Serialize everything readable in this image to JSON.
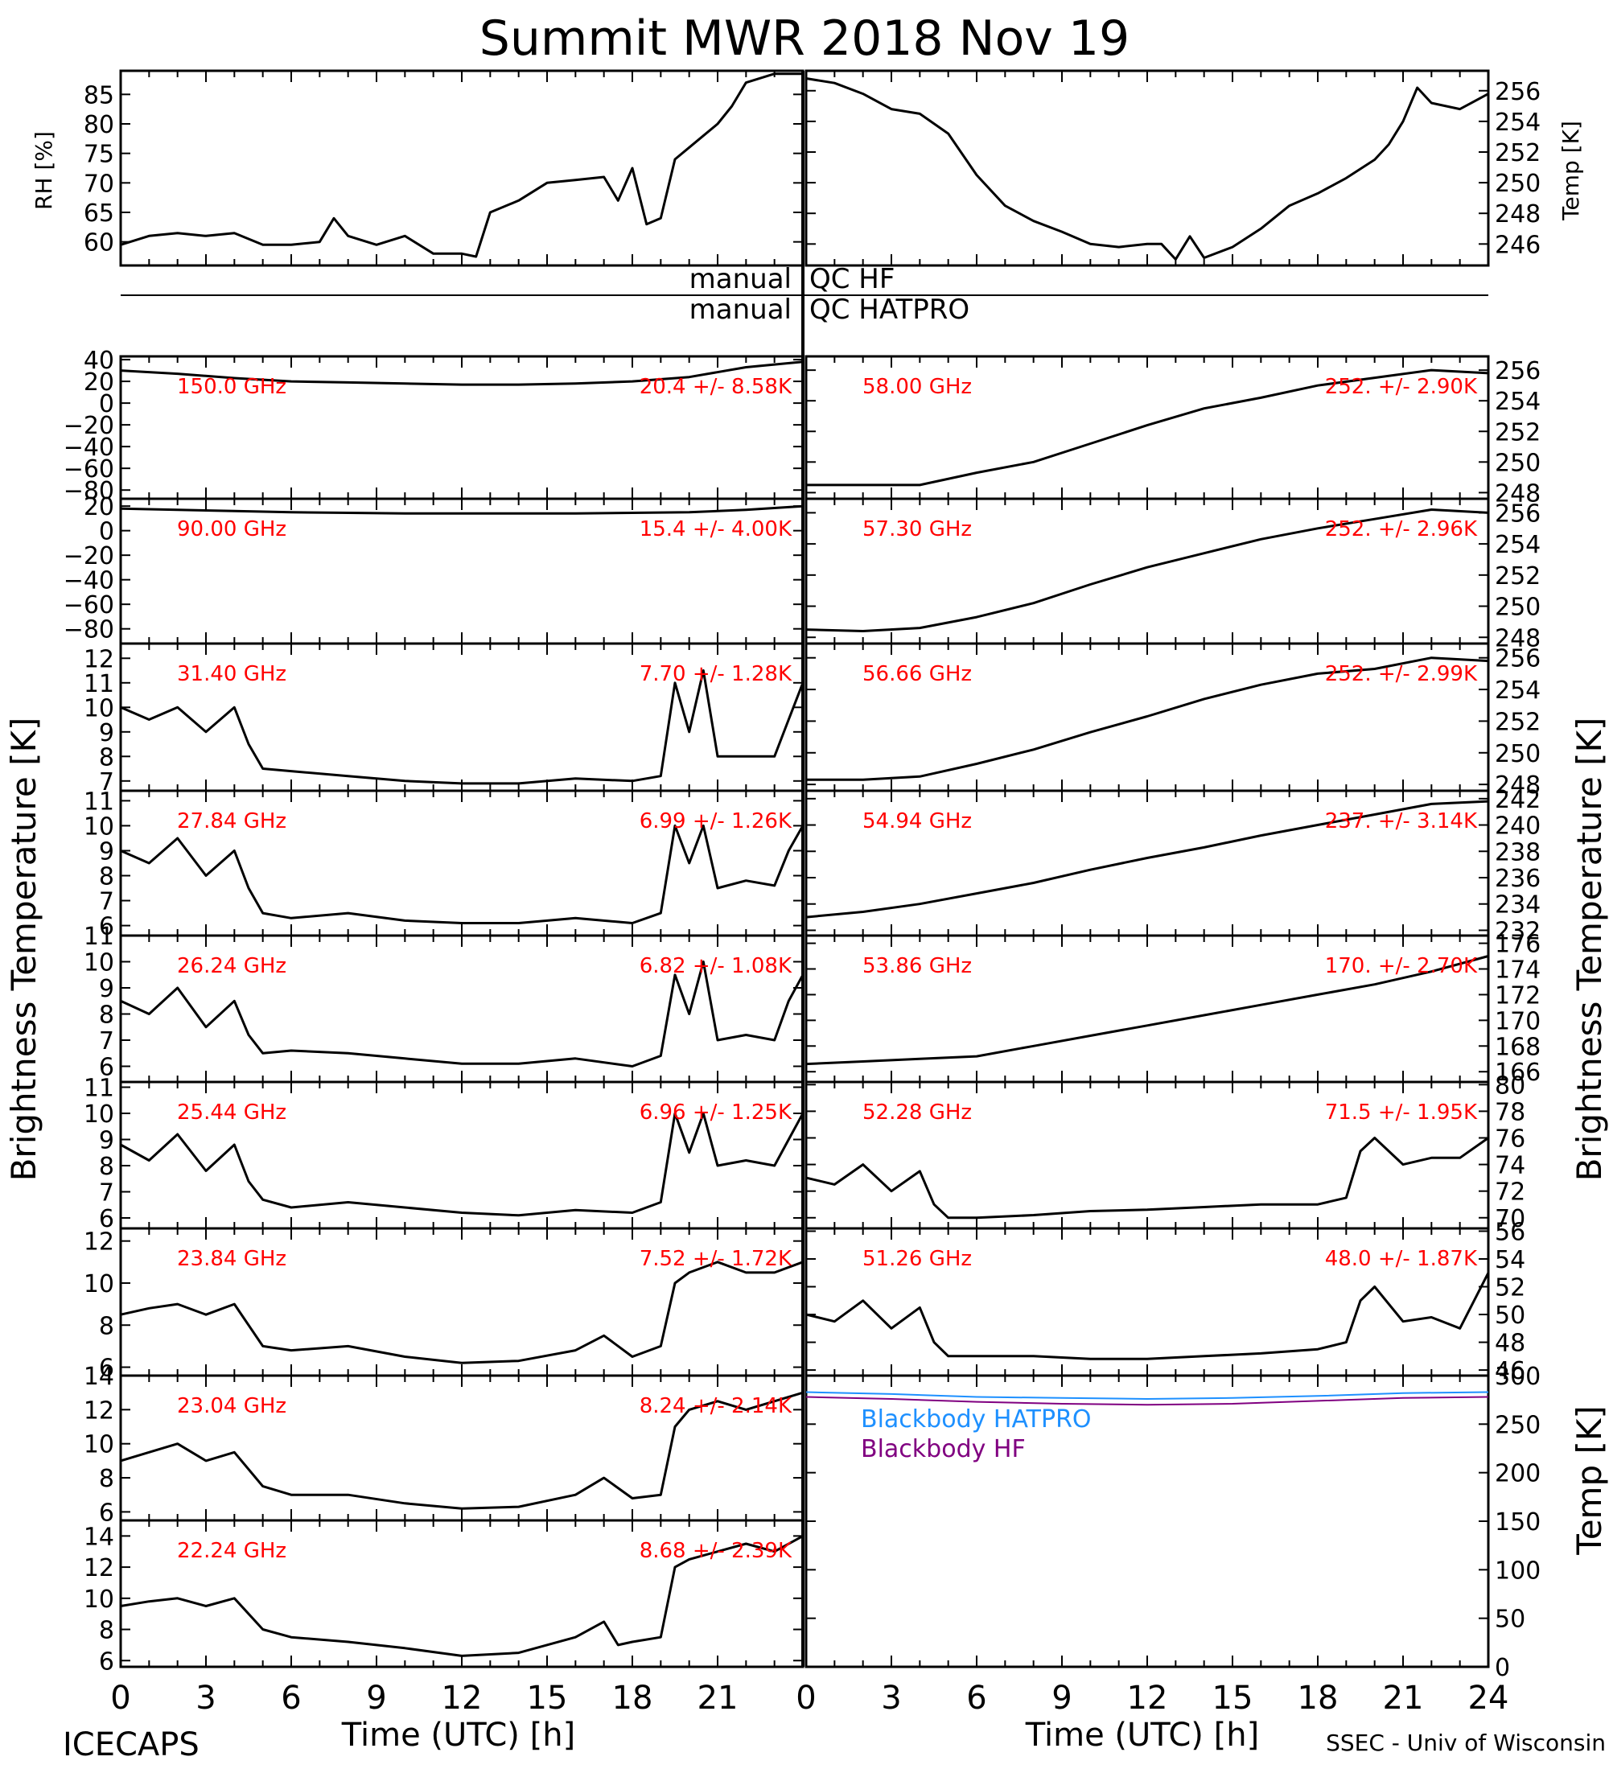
{
  "title": "Summit MWR 2018 Nov 19",
  "footer": {
    "left": "ICECAPS",
    "right": "SSEC - Univ of Wisconsin"
  },
  "xaxis": {
    "label": "Time (UTC) [h]",
    "ticks": [
      "0",
      "3",
      "6",
      "9",
      "12",
      "15",
      "18",
      "21",
      "0",
      "3",
      "6",
      "9",
      "12",
      "15",
      "18",
      "21",
      "24"
    ]
  },
  "side_labels": {
    "left_tb": "Brightness Temperature [K]",
    "right_tb": "Brightness Temperature [K]",
    "rh": "RH [%]",
    "temp_top": "Temp [K]",
    "temp_bb": "Temp [K]"
  },
  "qc": {
    "left1": "manual",
    "right1": "QC HF",
    "left2": "manual",
    "right2": "QC HATPRO"
  },
  "colors": {
    "channel_text": "#ff0000",
    "hatpro": "#1e90ff",
    "hf": "#800080",
    "line": "#000000"
  },
  "chart_data": [
    {
      "type": "line",
      "id": "rh",
      "ylabel": "RH [%]",
      "xlim": [
        0,
        24
      ],
      "ylim": [
        56,
        89
      ],
      "yticks": [
        60,
        65,
        70,
        75,
        80,
        85
      ],
      "x": [
        0,
        1,
        2,
        3,
        4,
        5,
        6,
        7,
        7.5,
        8,
        9,
        10,
        11,
        12,
        12.5,
        13,
        14,
        15,
        16,
        17,
        17.5,
        18,
        18.5,
        19,
        19.5,
        20,
        20.5,
        21,
        21.5,
        22,
        23,
        24
      ],
      "values": [
        59.5,
        61,
        61.5,
        61,
        61.5,
        59.5,
        59.5,
        60,
        64,
        61,
        59.5,
        61,
        58,
        58,
        57.5,
        65,
        67,
        70,
        70.5,
        71,
        67,
        72.5,
        63,
        64,
        74,
        76,
        78,
        80,
        83,
        87,
        88.5,
        88.5
      ]
    },
    {
      "type": "line",
      "id": "temp",
      "ylabel": "Temp [K]",
      "xlim": [
        0,
        24
      ],
      "ylim": [
        244.6,
        257.3
      ],
      "yticks": [
        246,
        248,
        250,
        252,
        254,
        256
      ],
      "x": [
        0,
        1,
        2,
        3,
        4,
        5,
        6,
        7,
        8,
        9,
        10,
        11,
        12,
        12.5,
        13,
        13.5,
        14,
        15,
        16,
        17,
        18,
        19,
        20,
        20.5,
        21,
        21.5,
        22,
        23,
        24
      ],
      "values": [
        256.8,
        256.5,
        255.8,
        254.8,
        254.5,
        253.2,
        250.5,
        248.5,
        247.5,
        246.8,
        246,
        245.8,
        246,
        246,
        245,
        246.5,
        245.1,
        245.8,
        247,
        248.5,
        249.3,
        250.3,
        251.5,
        252.5,
        254,
        256.2,
        255.2,
        254.8,
        255.8
      ]
    },
    {
      "type": "line",
      "id": "ch150",
      "label": "150.0 GHz",
      "stats": "20.4 +/- 8.58K",
      "xlim": [
        0,
        24
      ],
      "ylim": [
        -88,
        43
      ],
      "yticks": [
        40,
        20,
        0,
        -20,
        -40,
        -60,
        -80
      ],
      "x": [
        0,
        2,
        4,
        6,
        8,
        10,
        12,
        14,
        16,
        18,
        20,
        22,
        24
      ],
      "values": [
        30,
        27,
        23,
        20,
        19,
        18,
        17,
        17,
        18,
        20,
        24,
        33,
        38
      ]
    },
    {
      "type": "line",
      "id": "ch90",
      "label": "90.00 GHz",
      "stats": "15.4 +/- 4.00K",
      "xlim": [
        0,
        24
      ],
      "ylim": [
        -92,
        26
      ],
      "yticks": [
        20,
        0,
        -20,
        -40,
        -60,
        -80
      ],
      "x": [
        0,
        2,
        4,
        6,
        8,
        10,
        12,
        14,
        16,
        18,
        20,
        22,
        24
      ],
      "values": [
        18,
        17,
        16,
        15,
        14.5,
        14,
        14,
        14,
        14,
        14.5,
        15,
        17,
        20
      ]
    },
    {
      "type": "line",
      "id": "ch31",
      "label": "31.40 GHz",
      "stats": "7.70 +/- 1.28K",
      "xlim": [
        0,
        24
      ],
      "ylim": [
        6.6,
        12.6
      ],
      "yticks": [
        7,
        8,
        9,
        10,
        11,
        12
      ],
      "x": [
        0,
        1,
        2,
        3,
        4,
        4.5,
        5,
        6,
        8,
        10,
        12,
        14,
        16,
        18,
        19,
        19.5,
        20,
        20.5,
        21,
        22,
        23,
        23.5,
        24
      ],
      "values": [
        10,
        9.5,
        10,
        9,
        10,
        8.5,
        7.5,
        7.4,
        7.2,
        7.0,
        6.9,
        6.9,
        7.1,
        7.0,
        7.2,
        11,
        9,
        11.5,
        8,
        8,
        8,
        9.5,
        11
      ]
    },
    {
      "type": "line",
      "id": "ch27",
      "label": "27.84 GHz",
      "stats": "6.99 +/- 1.26K",
      "xlim": [
        0,
        24
      ],
      "ylim": [
        5.6,
        11.4
      ],
      "yticks": [
        6,
        7,
        8,
        9,
        10,
        11
      ],
      "x": [
        0,
        1,
        2,
        3,
        4,
        4.5,
        5,
        6,
        8,
        10,
        12,
        14,
        16,
        18,
        19,
        19.5,
        20,
        20.5,
        21,
        22,
        23,
        23.5,
        24
      ],
      "values": [
        9,
        8.5,
        9.5,
        8,
        9,
        7.5,
        6.5,
        6.3,
        6.5,
        6.2,
        6.1,
        6.1,
        6.3,
        6.1,
        6.5,
        10,
        8.5,
        10,
        7.5,
        7.8,
        7.6,
        9,
        10
      ]
    },
    {
      "type": "line",
      "id": "ch26",
      "label": "26.24 GHz",
      "stats": "6.82 +/- 1.08K",
      "xlim": [
        0,
        24
      ],
      "ylim": [
        5.4,
        11.0
      ],
      "yticks": [
        6,
        7,
        8,
        9,
        10,
        11
      ],
      "x": [
        0,
        1,
        2,
        3,
        4,
        4.5,
        5,
        6,
        8,
        10,
        12,
        14,
        16,
        18,
        19,
        19.5,
        20,
        20.5,
        21,
        22,
        23,
        23.5,
        24
      ],
      "values": [
        8.5,
        8,
        9,
        7.5,
        8.5,
        7.2,
        6.5,
        6.6,
        6.5,
        6.3,
        6.1,
        6.1,
        6.3,
        6.0,
        6.4,
        9.5,
        8,
        10,
        7.0,
        7.2,
        7.0,
        8.5,
        9.5
      ]
    },
    {
      "type": "line",
      "id": "ch25",
      "label": "25.44 GHz",
      "stats": "6.96 +/- 1.25K",
      "xlim": [
        0,
        24
      ],
      "ylim": [
        5.6,
        11.2
      ],
      "yticks": [
        6,
        7,
        8,
        9,
        10,
        11
      ],
      "x": [
        0,
        1,
        2,
        3,
        4,
        4.5,
        5,
        6,
        8,
        10,
        12,
        14,
        16,
        18,
        19,
        19.5,
        20,
        20.5,
        21,
        22,
        23,
        23.5,
        24
      ],
      "values": [
        8.8,
        8.2,
        9.2,
        7.8,
        8.8,
        7.4,
        6.7,
        6.4,
        6.6,
        6.4,
        6.2,
        6.1,
        6.3,
        6.2,
        6.6,
        10,
        8.5,
        10,
        8.0,
        8.2,
        8.0,
        9.0,
        10
      ]
    },
    {
      "type": "line",
      "id": "ch23_8",
      "label": "23.84 GHz",
      "stats": "7.52 +/- 1.72K",
      "xlim": [
        0,
        24
      ],
      "ylim": [
        5.6,
        12.6
      ],
      "yticks": [
        6,
        8,
        10,
        12
      ],
      "x": [
        0,
        1,
        2,
        3,
        4,
        5,
        6,
        8,
        10,
        12,
        14,
        16,
        17,
        18,
        19,
        19.5,
        20,
        21,
        22,
        23,
        24
      ],
      "values": [
        8.5,
        8.8,
        9,
        8.5,
        9,
        7,
        6.8,
        7,
        6.5,
        6.2,
        6.3,
        6.8,
        7.5,
        6.5,
        7,
        10,
        10.5,
        11,
        10.5,
        10.5,
        11
      ]
    },
    {
      "type": "line",
      "id": "ch23_0",
      "label": "23.04 GHz",
      "stats": "8.24 +/- 2.14K",
      "xlim": [
        0,
        24
      ],
      "ylim": [
        5.5,
        14.0
      ],
      "yticks": [
        6,
        8,
        10,
        12,
        14
      ],
      "x": [
        0,
        1,
        2,
        3,
        4,
        5,
        6,
        8,
        10,
        12,
        14,
        16,
        17,
        18,
        19,
        19.5,
        20,
        21,
        22,
        23,
        24
      ],
      "values": [
        9,
        9.5,
        10,
        9,
        9.5,
        7.5,
        7,
        7,
        6.5,
        6.2,
        6.3,
        7,
        8,
        6.8,
        7,
        11,
        12,
        12.5,
        12,
        12.5,
        13
      ]
    },
    {
      "type": "line",
      "id": "ch22",
      "label": "22.24 GHz",
      "stats": "8.68 +/- 2.39K",
      "xlim": [
        0,
        24
      ],
      "ylim": [
        5.6,
        15.0
      ],
      "yticks": [
        6,
        8,
        10,
        12,
        14
      ],
      "x": [
        0,
        1,
        2,
        3,
        4,
        5,
        6,
        8,
        10,
        12,
        14,
        16,
        17,
        17.5,
        18,
        19,
        19.5,
        20,
        21,
        22,
        23,
        24
      ],
      "values": [
        9.5,
        9.8,
        10,
        9.5,
        10,
        8,
        7.5,
        7.2,
        6.8,
        6.3,
        6.5,
        7.5,
        8.5,
        7,
        7.2,
        7.5,
        12,
        12.5,
        13,
        13.5,
        13,
        14
      ]
    },
    {
      "type": "line",
      "id": "ch58",
      "label": "58.00 GHz",
      "stats": "252. +/- 2.90K",
      "xlim": [
        0,
        24
      ],
      "ylim": [
        247.6,
        256.9
      ],
      "yticks": [
        248,
        250,
        252,
        254,
        256
      ],
      "x": [
        0,
        2,
        4,
        6,
        8,
        10,
        12,
        14,
        16,
        18,
        20,
        22,
        24
      ],
      "values": [
        248.5,
        248.5,
        248.5,
        249.3,
        250,
        251.2,
        252.4,
        253.5,
        254.2,
        255,
        255.5,
        256,
        255.8
      ]
    },
    {
      "type": "line",
      "id": "ch57_3",
      "label": "57.30 GHz",
      "stats": "252. +/- 2.96K",
      "xlim": [
        0,
        24
      ],
      "ylim": [
        247.6,
        256.9
      ],
      "yticks": [
        248,
        250,
        252,
        254,
        256
      ],
      "x": [
        0,
        2,
        4,
        6,
        8,
        10,
        12,
        14,
        16,
        18,
        20,
        22,
        24
      ],
      "values": [
        248.5,
        248.4,
        248.6,
        249.3,
        250.2,
        251.4,
        252.5,
        253.4,
        254.3,
        255,
        255.6,
        256.2,
        256
      ]
    },
    {
      "type": "line",
      "id": "ch56_6",
      "label": "56.66 GHz",
      "stats": "252. +/- 2.99K",
      "xlim": [
        0,
        24
      ],
      "ylim": [
        247.6,
        256.9
      ],
      "yticks": [
        248,
        250,
        252,
        254,
        256
      ],
      "x": [
        0,
        2,
        4,
        6,
        8,
        10,
        12,
        14,
        16,
        18,
        20,
        22,
        24
      ],
      "values": [
        248.3,
        248.3,
        248.5,
        249.3,
        250.2,
        251.3,
        252.3,
        253.4,
        254.3,
        255,
        255.3,
        256,
        255.8
      ]
    },
    {
      "type": "line",
      "id": "ch54_9",
      "label": "54.94 GHz",
      "stats": "237. +/- 3.14K",
      "xlim": [
        0,
        24
      ],
      "ylim": [
        231.6,
        242.6
      ],
      "yticks": [
        232,
        234,
        236,
        238,
        240,
        242
      ],
      "x": [
        0,
        2,
        4,
        6,
        8,
        10,
        12,
        14,
        16,
        18,
        20,
        22,
        24
      ],
      "values": [
        233,
        233.4,
        234,
        234.8,
        235.6,
        236.6,
        237.5,
        238.3,
        239.2,
        240,
        240.8,
        241.6,
        241.8
      ]
    },
    {
      "type": "line",
      "id": "ch53_8",
      "label": "53.86 GHz",
      "stats": "170. +/- 2.70K",
      "xlim": [
        0,
        24
      ],
      "ylim": [
        165.2,
        176.6
      ],
      "yticks": [
        166,
        168,
        170,
        172,
        174,
        176
      ],
      "x": [
        0,
        2,
        4,
        6,
        8,
        10,
        12,
        14,
        16,
        18,
        20,
        22,
        24
      ],
      "values": [
        166.6,
        166.8,
        167,
        167.2,
        168,
        168.8,
        169.6,
        170.4,
        171.2,
        172,
        172.8,
        173.8,
        175
      ]
    },
    {
      "type": "line",
      "id": "ch52_2",
      "label": "52.28 GHz",
      "stats": "71.5 +/- 1.95K",
      "xlim": [
        0,
        24
      ],
      "ylim": [
        69.2,
        80.2
      ],
      "yticks": [
        70,
        72,
        74,
        76,
        78,
        80
      ],
      "x": [
        0,
        1,
        2,
        3,
        4,
        4.5,
        5,
        6,
        8,
        10,
        12,
        14,
        16,
        18,
        19,
        19.5,
        20,
        21,
        22,
        23,
        24
      ],
      "values": [
        73,
        72.5,
        74,
        72,
        73.5,
        71,
        70,
        70,
        70.2,
        70.5,
        70.6,
        70.8,
        71,
        71,
        71.5,
        75,
        76,
        74,
        74.5,
        74.5,
        76
      ]
    },
    {
      "type": "line",
      "id": "ch51_2",
      "label": "51.26 GHz",
      "stats": "48.0 +/- 1.87K",
      "xlim": [
        0,
        24
      ],
      "ylim": [
        45.6,
        56.2
      ],
      "yticks": [
        46,
        48,
        50,
        52,
        54,
        56
      ],
      "x": [
        0,
        1,
        2,
        3,
        4,
        4.5,
        5,
        6,
        8,
        10,
        12,
        14,
        16,
        18,
        19,
        19.5,
        20,
        21,
        22,
        23,
        24
      ],
      "values": [
        50,
        49.5,
        51,
        49,
        50.5,
        48,
        47,
        47,
        47,
        46.8,
        46.8,
        47,
        47.2,
        47.5,
        48,
        51,
        52,
        49.5,
        49.8,
        49,
        53
      ]
    },
    {
      "type": "line",
      "id": "blackbody",
      "ylabel": "Temp [K]",
      "xlim": [
        0,
        24
      ],
      "ylim": [
        0,
        300
      ],
      "yticks": [
        0,
        50,
        100,
        150,
        200,
        250,
        300
      ],
      "series": [
        {
          "name": "Blackbody HATPRO",
          "color": "#1e90ff",
          "x": [
            0,
            3,
            6,
            9,
            12,
            15,
            18,
            21,
            24
          ],
          "values": [
            283,
            281,
            278,
            277,
            276,
            277,
            279,
            282,
            283
          ]
        },
        {
          "name": "Blackbody HF",
          "color": "#800080",
          "x": [
            0,
            3,
            6,
            9,
            12,
            15,
            18,
            21,
            24
          ],
          "values": [
            278,
            276,
            273,
            271,
            270,
            271,
            274,
            277,
            278
          ]
        }
      ]
    }
  ]
}
